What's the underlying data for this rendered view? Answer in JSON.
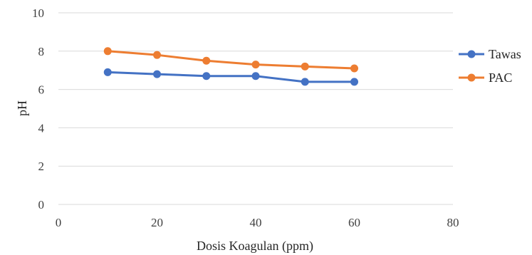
{
  "chart_data": {
    "type": "line",
    "title": "",
    "xlabel": "Dosis Koagulan (ppm)",
    "ylabel": "pH",
    "xlim": [
      0,
      80
    ],
    "ylim": [
      0,
      10
    ],
    "xticks": [
      0,
      20,
      40,
      60,
      80
    ],
    "yticks": [
      0,
      2,
      4,
      6,
      8,
      10
    ],
    "grid": "horizontal",
    "legend_position": "right",
    "x": [
      10,
      20,
      30,
      40,
      50,
      60
    ],
    "series": [
      {
        "name": "Tawas",
        "color": "#4472c4",
        "values": [
          6.9,
          6.8,
          6.7,
          6.7,
          6.4,
          6.4
        ]
      },
      {
        "name": "PAC",
        "color": "#ed7d31",
        "values": [
          8.0,
          7.8,
          7.5,
          7.3,
          7.2,
          7.1
        ]
      }
    ]
  }
}
